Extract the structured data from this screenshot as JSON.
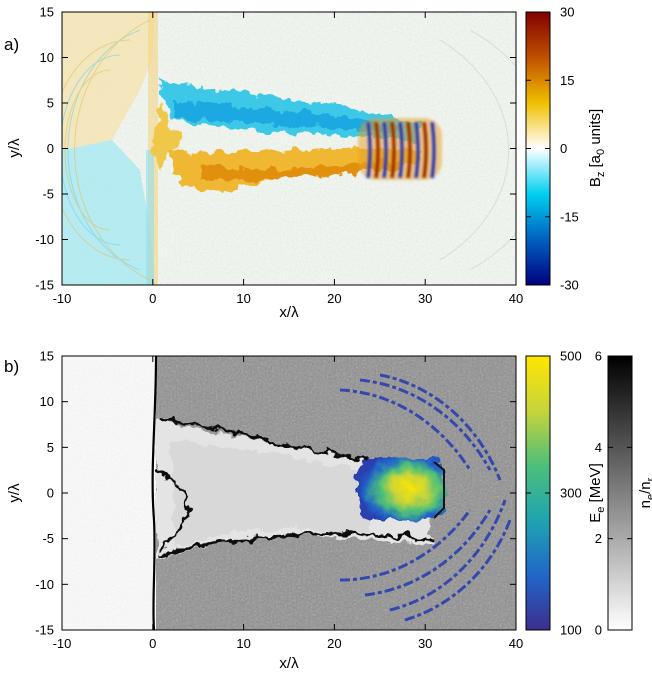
{
  "chart_data": [
    {
      "panel_label": "a)",
      "type": "heatmap",
      "xlabel": "x/λ",
      "ylabel": "y/λ",
      "xlim": [
        -10,
        40
      ],
      "ylim": [
        -15,
        15
      ],
      "xticks": [
        -10,
        0,
        10,
        20,
        30,
        40
      ],
      "yticks": [
        -15,
        -10,
        -5,
        0,
        5,
        10,
        15
      ],
      "colorbar": {
        "label_main": "B",
        "label_sub": "z",
        "label_rest": " [a",
        "label_sub2": "0",
        "label_end": " units]",
        "range": [
          -30,
          30
        ],
        "ticks": [
          -30,
          -15,
          0,
          15,
          30
        ],
        "colors": [
          "#000080",
          "#0060c0",
          "#00d0f0",
          "#ffffff",
          "#f0c000",
          "#c05000",
          "#800000"
        ]
      }
    },
    {
      "panel_label": "b)",
      "type": "heatmap",
      "xlabel": "x/λ",
      "ylabel": "y/λ",
      "xlim": [
        -10,
        40
      ],
      "ylim": [
        -15,
        15
      ],
      "xticks": [
        -10,
        0,
        10,
        20,
        30,
        40
      ],
      "yticks": [
        -15,
        -10,
        -5,
        0,
        5,
        10,
        15
      ],
      "colorbar_energy": {
        "label_main": "E",
        "label_sub": "e",
        "label_rest": " [MeV]",
        "range": [
          100,
          500
        ],
        "ticks": [
          100,
          300,
          500
        ],
        "colors": [
          "#3b2f8f",
          "#2166c8",
          "#1fa4b0",
          "#4cbf7a",
          "#c7d43a",
          "#ffe600"
        ]
      },
      "colorbar_density": {
        "label_main": "n",
        "label_sub": "e",
        "label_mid": "/n",
        "label_sub2": "r",
        "range": [
          0,
          6
        ],
        "ticks": [
          0,
          2,
          4,
          6
        ],
        "colors": [
          "#ffffff",
          "#000000"
        ]
      }
    }
  ]
}
